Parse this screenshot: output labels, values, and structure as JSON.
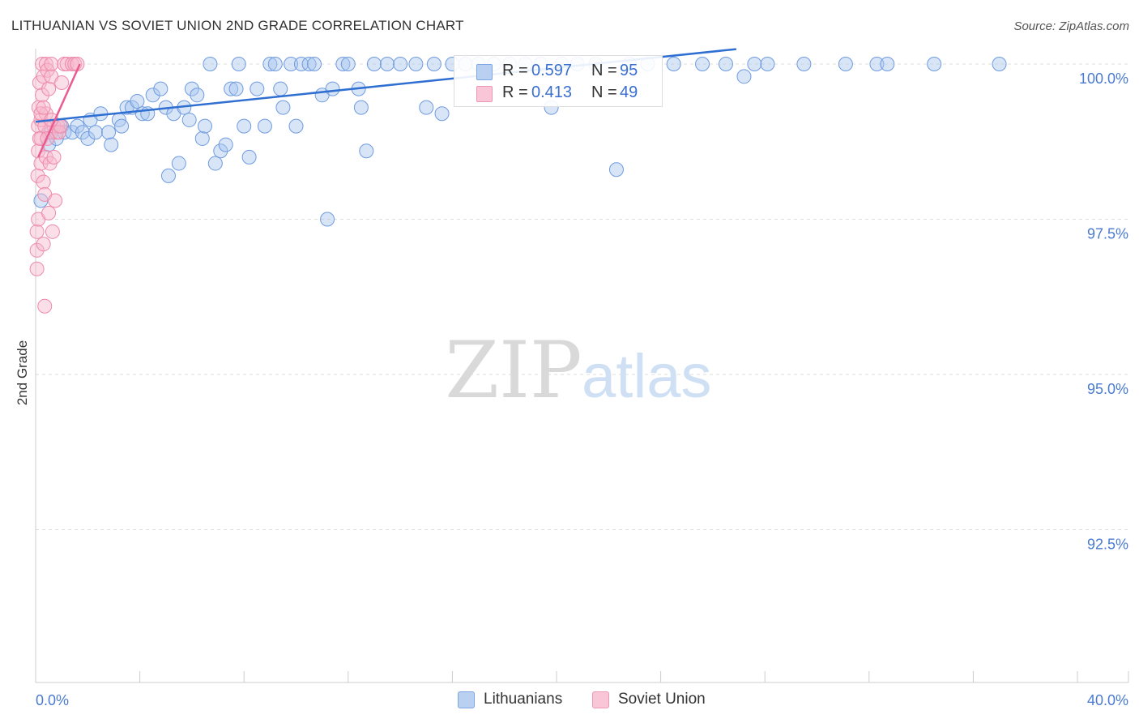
{
  "header": {
    "title": "LITHUANIAN VS SOVIET UNION 2ND GRADE CORRELATION CHART",
    "source": "Source: ZipAtlas.com"
  },
  "watermark": {
    "zip": "ZIP",
    "atlas": "atlas"
  },
  "colors": {
    "blue_fill": "#a9c6ee",
    "blue_stroke": "#6f9be0",
    "blue_line": "#2f6fd1",
    "pink_fill": "#f6b8cb",
    "pink_stroke": "#ee8aab",
    "pink_line": "#ea5b8f",
    "tick_label": "#4a7bd0",
    "grid": "#dddddd"
  },
  "legend": {
    "rows": [
      {
        "r_label": "R =",
        "r_value": "0.597",
        "n_label": "N =",
        "n_value": "95"
      },
      {
        "r_label": "R =",
        "r_value": "0.413",
        "n_label": "N =",
        "n_value": "49"
      }
    ]
  },
  "bottom_legend": {
    "items": [
      "Lithuanians",
      "Soviet Union"
    ]
  },
  "chart_data": {
    "type": "scatter",
    "title": "LITHUANIAN VS SOVIET UNION 2ND GRADE CORRELATION CHART",
    "xlabel": "",
    "ylabel": "2nd Grade",
    "xlim": [
      0,
      40
    ],
    "ylim": [
      90.7,
      100.3
    ],
    "x_tick_labels": [
      "0.0%",
      "40.0%"
    ],
    "y_ticks": [
      92.5,
      95.0,
      97.5,
      100.0
    ],
    "y_tick_labels": [
      "92.5%",
      "95.0%",
      "97.5%",
      "100.0%"
    ],
    "grid": true,
    "legend_position": "top-center",
    "series": [
      {
        "name": "Lithuanians",
        "r": 0.597,
        "n": 95,
        "trend": [
          [
            0.0,
            99.07
          ],
          [
            26.9,
            100.24
          ]
        ],
        "points": [
          [
            0.2,
            97.8
          ],
          [
            0.5,
            98.7
          ],
          [
            0.6,
            98.9
          ],
          [
            0.8,
            98.8
          ],
          [
            1.0,
            99.0
          ],
          [
            1.1,
            98.9
          ],
          [
            1.4,
            98.9
          ],
          [
            1.6,
            99.0
          ],
          [
            1.8,
            98.9
          ],
          [
            2.0,
            98.8
          ],
          [
            2.1,
            99.1
          ],
          [
            2.3,
            98.9
          ],
          [
            2.5,
            99.2
          ],
          [
            2.8,
            98.9
          ],
          [
            2.9,
            98.7
          ],
          [
            3.2,
            99.1
          ],
          [
            3.3,
            99.0
          ],
          [
            3.5,
            99.3
          ],
          [
            3.7,
            99.3
          ],
          [
            3.9,
            99.4
          ],
          [
            4.1,
            99.2
          ],
          [
            4.3,
            99.2
          ],
          [
            4.5,
            99.5
          ],
          [
            4.8,
            99.6
          ],
          [
            5.0,
            99.3
          ],
          [
            5.1,
            98.2
          ],
          [
            5.3,
            99.2
          ],
          [
            5.5,
            98.4
          ],
          [
            5.7,
            99.3
          ],
          [
            5.9,
            99.1
          ],
          [
            6.0,
            99.6
          ],
          [
            6.2,
            99.5
          ],
          [
            6.4,
            98.8
          ],
          [
            6.5,
            99.0
          ],
          [
            6.7,
            100.0
          ],
          [
            6.9,
            98.4
          ],
          [
            7.1,
            98.6
          ],
          [
            7.3,
            98.7
          ],
          [
            7.5,
            99.6
          ],
          [
            7.7,
            99.6
          ],
          [
            7.8,
            100.0
          ],
          [
            8.0,
            99.0
          ],
          [
            8.2,
            98.5
          ],
          [
            8.5,
            99.6
          ],
          [
            8.8,
            99.0
          ],
          [
            9.0,
            100.0
          ],
          [
            9.2,
            100.0
          ],
          [
            9.4,
            99.6
          ],
          [
            9.5,
            99.3
          ],
          [
            9.8,
            100.0
          ],
          [
            10.0,
            99.0
          ],
          [
            10.2,
            100.0
          ],
          [
            10.5,
            100.0
          ],
          [
            10.7,
            100.0
          ],
          [
            11.0,
            99.5
          ],
          [
            11.2,
            97.5
          ],
          [
            11.4,
            99.6
          ],
          [
            11.8,
            100.0
          ],
          [
            12.0,
            100.0
          ],
          [
            12.4,
            99.6
          ],
          [
            12.5,
            99.3
          ],
          [
            12.7,
            98.6
          ],
          [
            13.0,
            100.0
          ],
          [
            13.5,
            100.0
          ],
          [
            14.0,
            100.0
          ],
          [
            14.6,
            100.0
          ],
          [
            15.0,
            99.3
          ],
          [
            15.3,
            100.0
          ],
          [
            15.6,
            99.2
          ],
          [
            16.0,
            100.0
          ],
          [
            16.5,
            100.0
          ],
          [
            17.0,
            100.0
          ],
          [
            17.6,
            100.0
          ],
          [
            18.2,
            100.0
          ],
          [
            18.8,
            100.0
          ],
          [
            19.4,
            100.0
          ],
          [
            19.8,
            99.3
          ],
          [
            20.2,
            100.0
          ],
          [
            20.8,
            100.0
          ],
          [
            21.5,
            100.0
          ],
          [
            22.3,
            98.3
          ],
          [
            22.8,
            100.0
          ],
          [
            23.5,
            100.0
          ],
          [
            24.5,
            100.0
          ],
          [
            25.6,
            100.0
          ],
          [
            26.5,
            100.0
          ],
          [
            27.2,
            99.8
          ],
          [
            27.6,
            100.0
          ],
          [
            28.1,
            100.0
          ],
          [
            29.5,
            100.0
          ],
          [
            31.1,
            100.0
          ],
          [
            32.3,
            100.0
          ],
          [
            32.7,
            100.0
          ],
          [
            34.5,
            100.0
          ],
          [
            37.0,
            100.0
          ]
        ]
      },
      {
        "name": "Soviet Union",
        "r": 0.413,
        "n": 49,
        "trend": [
          [
            0.1,
            98.5
          ],
          [
            1.7,
            100.0
          ]
        ],
        "points": [
          [
            0.05,
            96.7
          ],
          [
            0.05,
            97.0
          ],
          [
            0.05,
            97.3
          ],
          [
            0.08,
            98.2
          ],
          [
            0.1,
            98.6
          ],
          [
            0.1,
            99.0
          ],
          [
            0.12,
            99.3
          ],
          [
            0.15,
            99.7
          ],
          [
            0.1,
            97.5
          ],
          [
            0.2,
            98.4
          ],
          [
            0.2,
            98.8
          ],
          [
            0.2,
            99.1
          ],
          [
            0.25,
            99.5
          ],
          [
            0.25,
            100.0
          ],
          [
            0.3,
            99.8
          ],
          [
            0.3,
            98.1
          ],
          [
            0.3,
            97.1
          ],
          [
            0.35,
            96.1
          ],
          [
            0.35,
            97.9
          ],
          [
            0.4,
            98.5
          ],
          [
            0.4,
            99.2
          ],
          [
            0.4,
            100.0
          ],
          [
            0.45,
            99.9
          ],
          [
            0.5,
            99.6
          ],
          [
            0.5,
            98.9
          ],
          [
            0.55,
            98.4
          ],
          [
            0.6,
            99.8
          ],
          [
            0.6,
            100.0
          ],
          [
            0.65,
            97.3
          ],
          [
            0.7,
            98.5
          ],
          [
            0.7,
            99.0
          ],
          [
            0.75,
            97.8
          ],
          [
            0.8,
            98.9
          ],
          [
            0.85,
            99.0
          ],
          [
            0.9,
            98.9
          ],
          [
            0.95,
            99.0
          ],
          [
            1.0,
            99.7
          ],
          [
            1.1,
            100.0
          ],
          [
            1.2,
            100.0
          ],
          [
            1.4,
            100.0
          ],
          [
            1.5,
            100.0
          ],
          [
            1.6,
            100.0
          ],
          [
            0.2,
            99.2
          ],
          [
            0.3,
            99.3
          ],
          [
            0.35,
            99.0
          ],
          [
            0.15,
            98.8
          ],
          [
            0.45,
            98.8
          ],
          [
            0.6,
            99.1
          ],
          [
            0.5,
            97.6
          ]
        ]
      }
    ]
  }
}
